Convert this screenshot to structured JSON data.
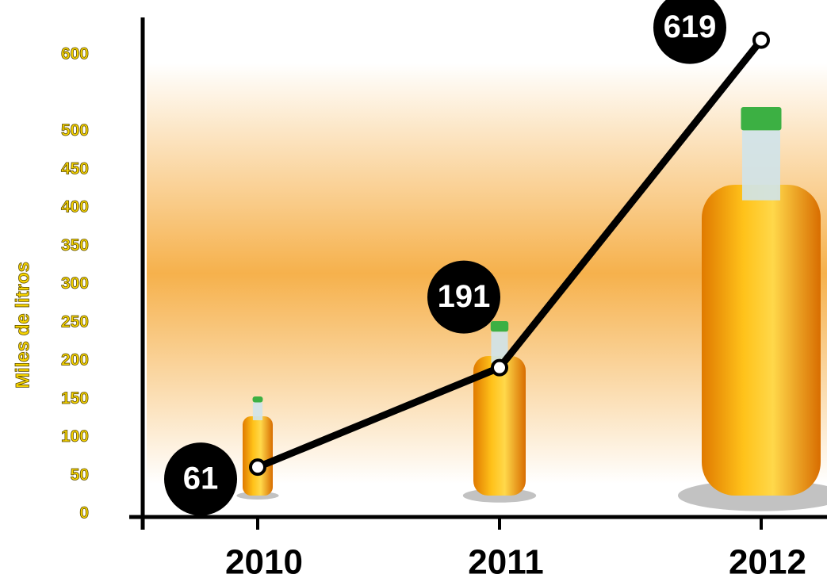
{
  "chart_data": {
    "type": "line",
    "y_label": "Miles de litros",
    "categories": [
      "2010",
      "2011",
      "2012"
    ],
    "values": [
      61,
      191,
      619
    ],
    "color": "#000000",
    "ylim": [
      0,
      630
    ],
    "yticks": [
      0,
      50,
      100,
      150,
      200,
      250,
      300,
      350,
      400,
      450,
      500,
      600
    ]
  }
}
